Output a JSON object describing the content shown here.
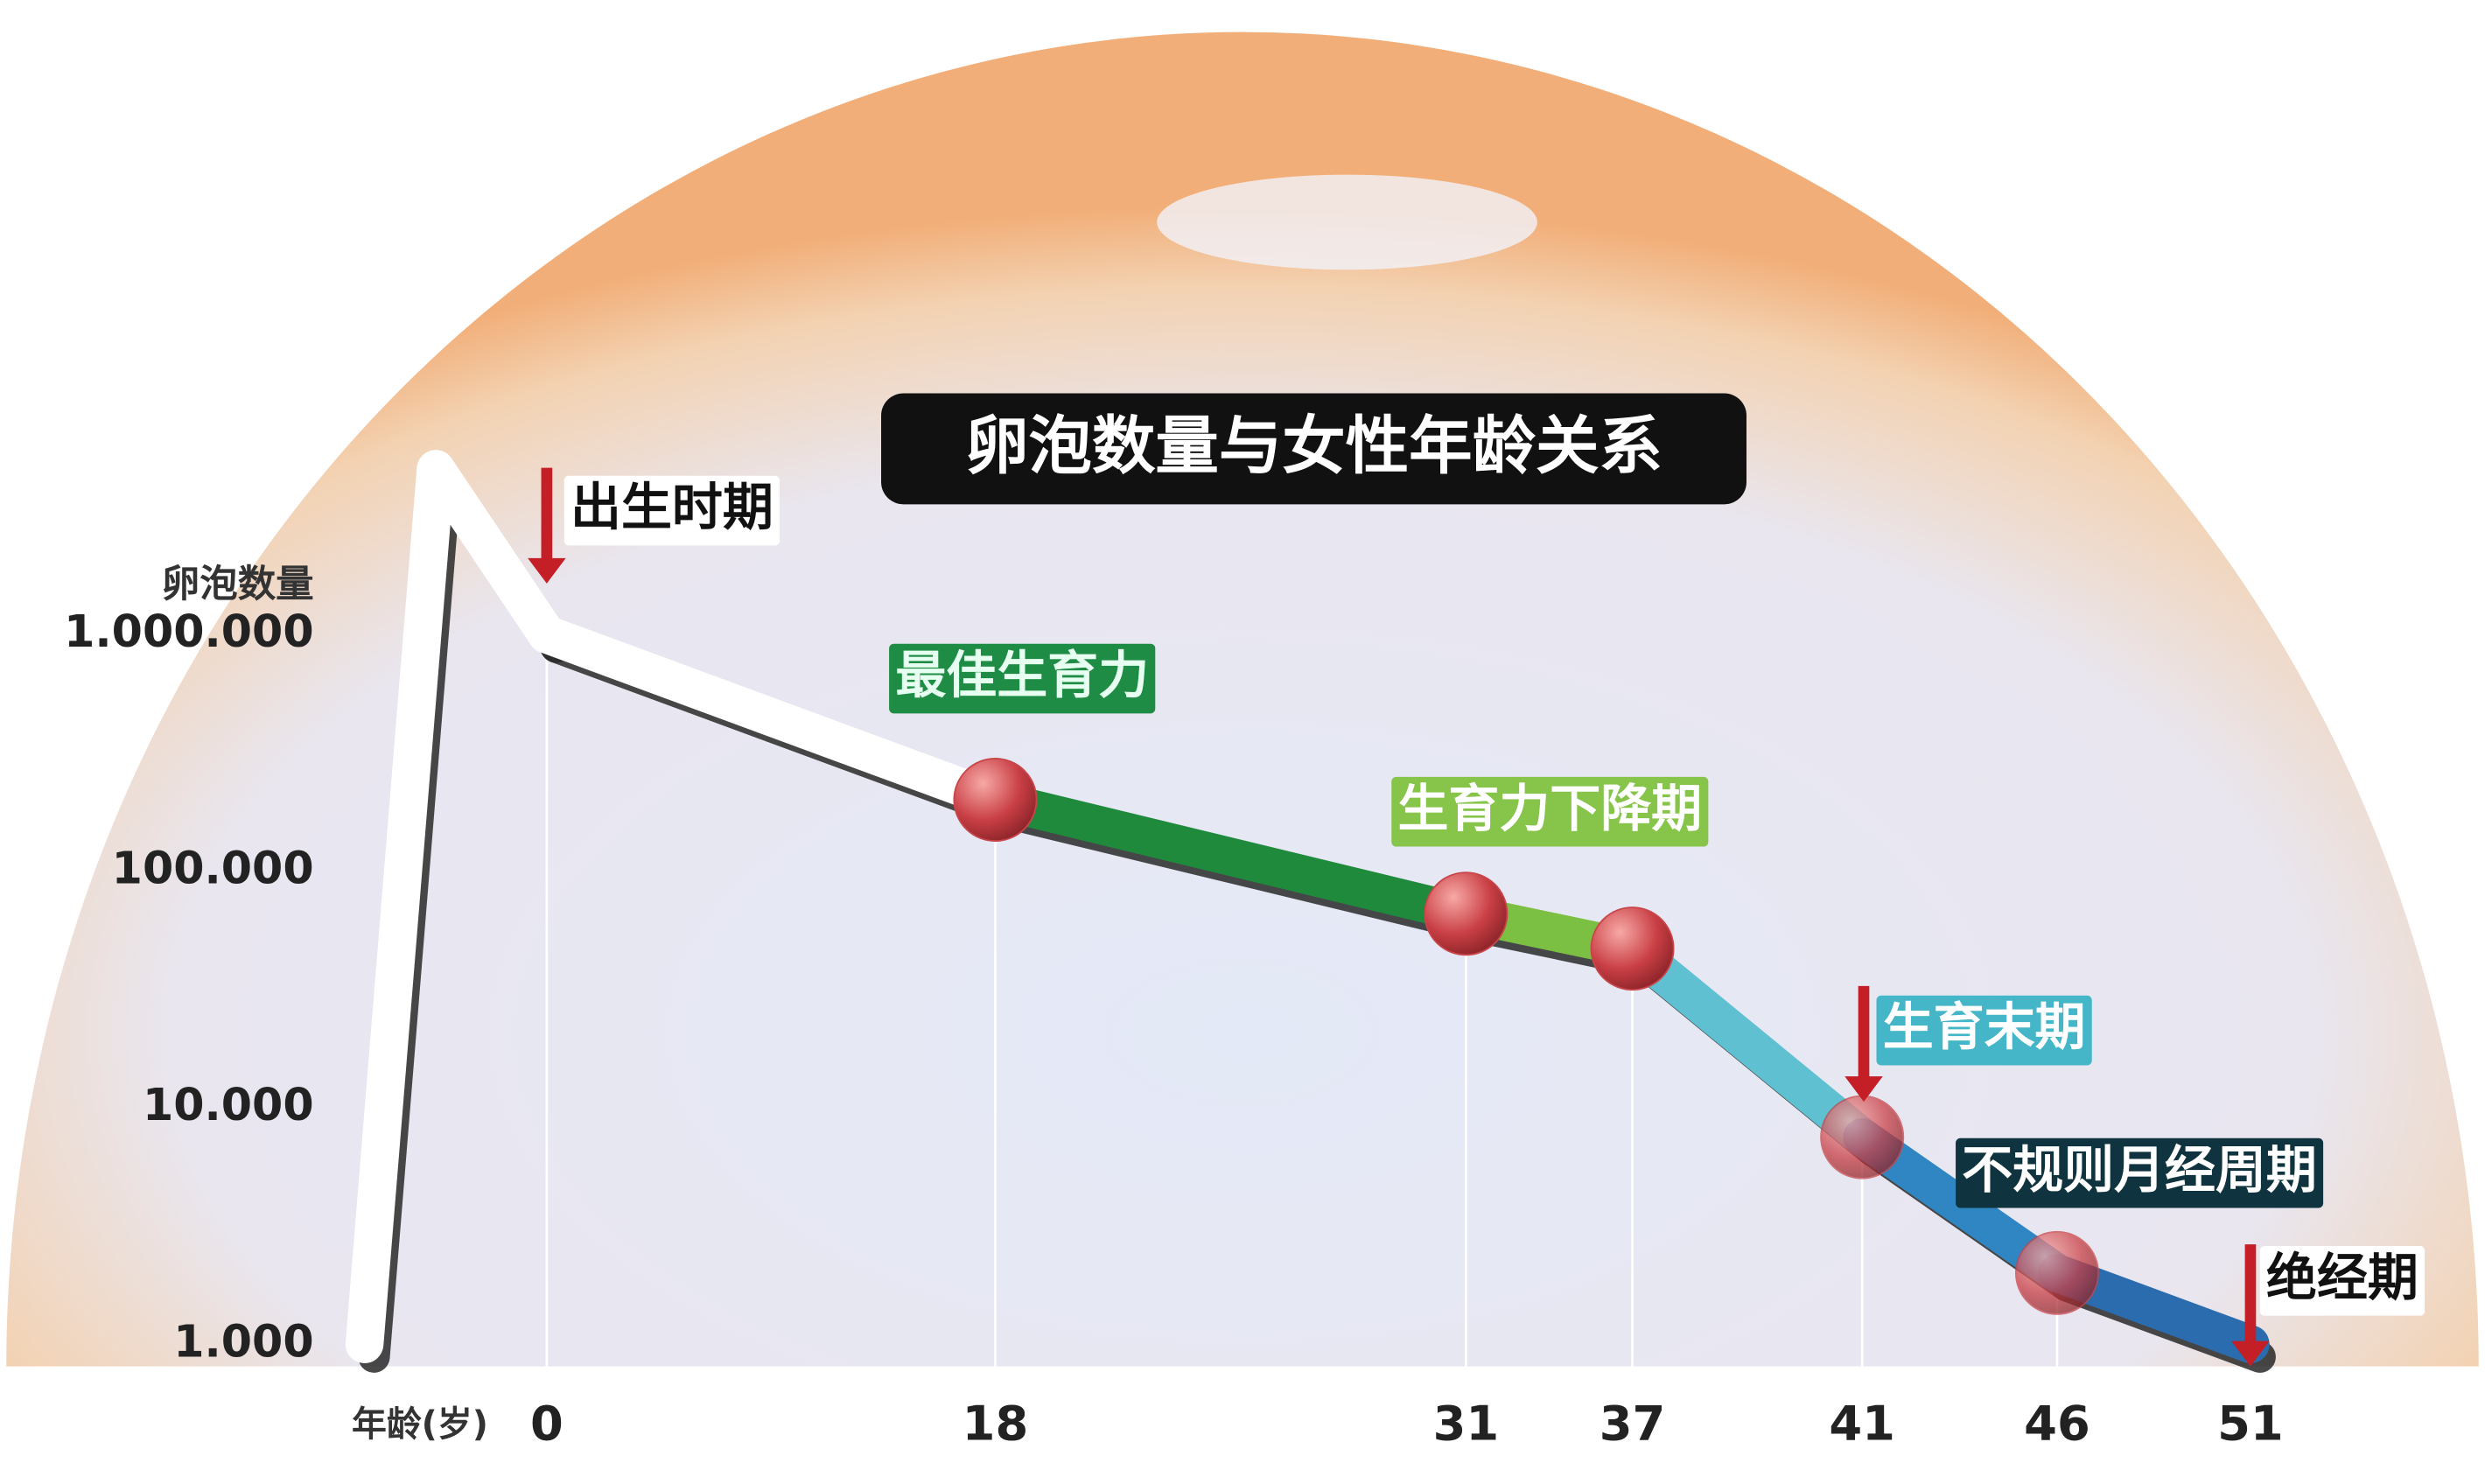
{
  "chart_data": {
    "type": "line",
    "title": "卵泡数量与女性年龄关系",
    "y_label": "卵泡数量",
    "x_label": "年龄(岁)",
    "categories": [
      null,
      null,
      "0",
      "18",
      "31",
      "37",
      "41",
      "46",
      "51"
    ],
    "values": [
      1000,
      5000000,
      1000000,
      200000,
      66000,
      47000,
      7500,
      2000,
      1000
    ],
    "segment_colors": [
      "#ffffff",
      "#ffffff",
      "#ffffff",
      "#1f8a3c",
      "#7cc043",
      "#5fc0d2",
      "#2f86c2",
      "#2b6cae"
    ],
    "marker_color": "#c8464a",
    "log_scale": true,
    "ylim": [
      1000,
      10000000
    ],
    "yticks": [
      {
        "value": 1000000,
        "label": "1.000.000"
      },
      {
        "value": 100000,
        "label": "100.000"
      },
      {
        "value": 10000,
        "label": "10.000"
      },
      {
        "value": 1000,
        "label": "1.000"
      }
    ],
    "annotations": [
      "出生时期",
      "最佳生育力",
      "生育力下降期",
      "生育末期",
      "不规则月经周期",
      "绝经期"
    ]
  }
}
